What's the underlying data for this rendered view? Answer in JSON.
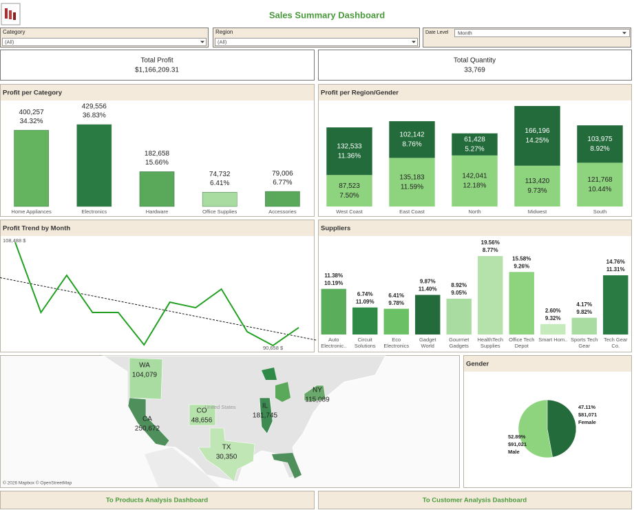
{
  "header": {
    "title": "Sales Summary Dashboard"
  },
  "filters": [
    {
      "label": "Category",
      "value": "(All)"
    },
    {
      "label": "Region",
      "value": "(All)"
    },
    {
      "label": "Date Level",
      "value": "Month"
    }
  ],
  "kpis": [
    {
      "label": "Total Profit",
      "value": "$1,166,209.31"
    },
    {
      "label": "Total Quantity",
      "value": "33,769"
    }
  ],
  "chart_data": [
    {
      "type": "bar",
      "title": "Profit per Category",
      "categories": [
        "Home Appliances",
        "Electronics",
        "Hardware",
        "Office Supplies",
        "Accessories"
      ],
      "values": [
        400257,
        429556,
        182658,
        74732,
        79006
      ],
      "value_labels": [
        "400,257",
        "429,556",
        "182,658",
        "74,732",
        "79,006"
      ],
      "shares": [
        34.32,
        36.83,
        15.66,
        6.41,
        6.77
      ],
      "share_labels": [
        "34.32%",
        "36.83%",
        "15.66%",
        "6.41%",
        "6.77%"
      ],
      "colors": [
        "#63b35f",
        "#2a7a44",
        "#5aa85a",
        "#a8dca0",
        "#5aa85a"
      ]
    },
    {
      "type": "stacked-bar",
      "title": "Profit per Region/Gender",
      "categories": [
        "West Coast",
        "East Coast",
        "North",
        "Midwest",
        "South"
      ],
      "series": [
        {
          "color": "#8ed47f",
          "label_color": "#222222",
          "values": [
            87523,
            135183,
            142041,
            113420,
            121768
          ],
          "value_labels": [
            "87,523",
            "135,183",
            "142,041",
            "113,420",
            "121,768"
          ],
          "shares": [
            7.5,
            11.59,
            12.18,
            9.73,
            10.44
          ],
          "share_labels": [
            "7.50%",
            "11.59%",
            "12.18%",
            "9.73%",
            "10.44%"
          ]
        },
        {
          "color": "#236b3b",
          "label_color": "#ffffff",
          "values": [
            132533,
            102142,
            61428,
            166196,
            103975
          ],
          "value_labels": [
            "132,533",
            "102,142",
            "61,428",
            "166,196",
            "103,975"
          ],
          "shares": [
            11.36,
            8.76,
            5.27,
            14.25,
            8.92
          ],
          "share_labels": [
            "11.36%",
            "8.76%",
            "5.27%",
            "14.25%",
            "8.92%"
          ]
        }
      ]
    },
    {
      "type": "line",
      "title": "Profit Trend by Month",
      "color": "#22a022",
      "trend_line": true,
      "values": [
        108488,
        96360,
        102780,
        96360,
        96360,
        90780,
        98140,
        97190,
        100400,
        93030,
        90658,
        93750
      ],
      "value_labels": [
        "108,488 $",
        null,
        null,
        null,
        null,
        null,
        null,
        null,
        null,
        null,
        "90,658 $",
        null
      ]
    },
    {
      "type": "bar",
      "title": "Suppliers",
      "categories": [
        "Auto Electronic..",
        "Circuit Solutions",
        "Eco Electronics",
        "Gadget World",
        "Gourmet Gadgets",
        "HealthTech Supplies",
        "Office Tech Depot",
        "Smart Hom..",
        "Sports Tech Gear",
        "Tech Gear Co."
      ],
      "series": [
        {
          "values": [
            11.38,
            6.74,
            6.41,
            9.87,
            8.92,
            19.56,
            15.58,
            2.6,
            4.17,
            14.76
          ],
          "value_labels": [
            "11.38%",
            "6.74%",
            "6.41%",
            "9.87%",
            "8.92%",
            "19.56%",
            "15.58%",
            "2.60%",
            "4.17%",
            "14.76%"
          ],
          "colors": [
            "#5aad5a",
            "#2f8a48",
            "#6bbf65",
            "#236b3b",
            "#a8dca0",
            "#b5e2ab",
            "#8ed47f",
            "#c5ebbd",
            "#a8dca0",
            "#2a7a44"
          ]
        },
        {
          "values": [
            10.19,
            11.09,
            9.78,
            11.4,
            9.05,
            8.77,
            9.26,
            9.32,
            9.82,
            11.31
          ],
          "value_labels": [
            "10.19%",
            "11.09%",
            "9.78%",
            "11.40%",
            "9.05%",
            "8.77%",
            "9.26%",
            "9.32%",
            "9.82%",
            "11.31%"
          ]
        }
      ]
    },
    {
      "type": "pie",
      "title": "Gender",
      "categories": [
        "Female",
        "Male"
      ],
      "values": [
        47.11,
        52.89
      ],
      "value_labels": [
        "47.11%",
        "52.89%"
      ],
      "amounts": [
        81071,
        91021
      ],
      "amount_labels": [
        "$81,071",
        "$91,021"
      ],
      "colors": [
        "#236b3b",
        "#8ed47f"
      ]
    }
  ],
  "map": {
    "country_label": "United States",
    "credit": "© 2026 Mapbox © OpenStreetMap",
    "states": [
      {
        "code": "WA",
        "value": 104079,
        "value_label": "104,079",
        "color": "#a8dca0"
      },
      {
        "code": "CA",
        "value": 250672,
        "value_label": "250,672",
        "color": "#4f8f5c"
      },
      {
        "code": "CO",
        "value": 48656,
        "value_label": "48,656",
        "color": "#b5e2ab"
      },
      {
        "code": "IL",
        "value": 181745,
        "value_label": "181,745",
        "color": "#3d8a53"
      },
      {
        "code": "TX",
        "value": 30350,
        "value_label": "30,350",
        "color": "#c0e6b6"
      },
      {
        "code": "NY",
        "value": 115089,
        "value_label": "115,089",
        "color": "#6ba86b"
      }
    ]
  },
  "buttons": [
    {
      "label": "To Products Analysis Dashboard"
    },
    {
      "label": "To Customer Analysis Dashboard"
    }
  ]
}
